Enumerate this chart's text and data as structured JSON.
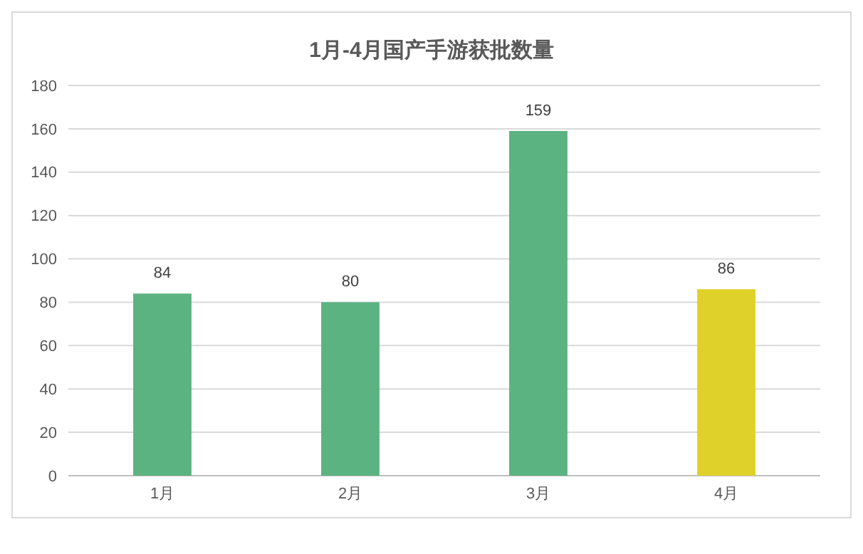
{
  "chart_data": {
    "type": "bar",
    "title": "1月-4月国产手游获批数量",
    "categories": [
      "1月",
      "2月",
      "3月",
      "4月"
    ],
    "values": [
      84,
      80,
      159,
      86
    ],
    "colors": [
      "#5bb381",
      "#5bb381",
      "#5bb381",
      "#e0d12a"
    ],
    "ylim": [
      0,
      180
    ],
    "yticks": [
      0,
      20,
      40,
      60,
      80,
      100,
      120,
      140,
      160,
      180
    ],
    "grid": "y",
    "data_labels": true
  }
}
